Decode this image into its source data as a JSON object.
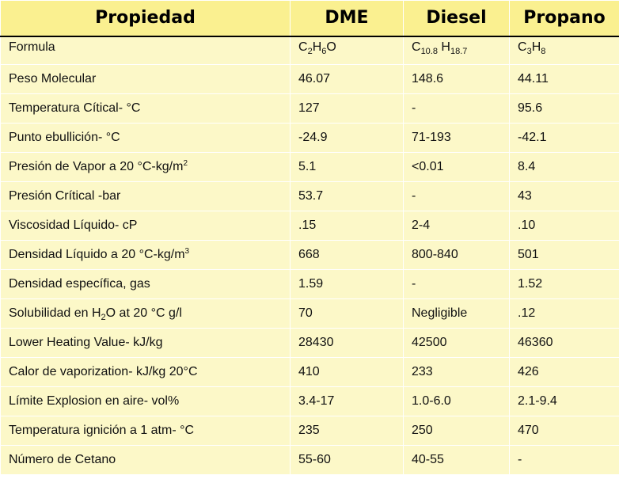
{
  "header": {
    "property": "Propiedad",
    "dme": "DME",
    "diesel": "Diesel",
    "propane": "Propano"
  },
  "formula": {
    "label": "Formula",
    "dme": {
      "c": "C",
      "c_n": "2",
      "h": "H",
      "h_n": "6",
      "o": "O"
    },
    "diesel": {
      "c": "C",
      "c_n": "10.8",
      "h": " H",
      "h_n": "18.7"
    },
    "propane": {
      "c": "C",
      "c_n": "3",
      "h": "H",
      "h_n": "8"
    }
  },
  "rows": [
    {
      "label": "Peso Molecular",
      "dme": "46.07",
      "diesel": "148.6",
      "propane": "44.11"
    },
    {
      "label": "Temperatura Cítical- °C",
      "dme": "127",
      "diesel": "-",
      "propane": "95.6"
    },
    {
      "label": "Punto ebullición- °C",
      "dme": "-24.9",
      "diesel": "71-193",
      "propane": "-42.1"
    },
    {
      "label_pre": "Presión de Vapor a 20 °C-kg/m",
      "label_sup": "2",
      "dme": "5.1",
      "diesel": "<0.01",
      "propane": "8.4"
    },
    {
      "label": "Presión Crítical -bar",
      "dme": "53.7",
      "diesel": "-",
      "propane": "43"
    },
    {
      "label": "Viscosidad Líquido- cP",
      "dme": ".15",
      "diesel": "2-4",
      "propane": ".10"
    },
    {
      "label_pre": "Densidad  Líquido a 20 °C-kg/m",
      "label_sup": "3",
      "dme": "668",
      "diesel": "800-840",
      "propane": "501"
    },
    {
      "label": "Densidad específica, gas",
      "dme": "1.59",
      "diesel": "-",
      "propane": "1.52"
    },
    {
      "label_pre": "Solubilidad en H",
      "label_sub": "2",
      "label_post": "O at 20 °C g/l",
      "dme": "70",
      "diesel": "Negligible",
      "propane": ".12"
    },
    {
      "label": "Lower Heating Value- kJ/kg",
      "dme": "28430",
      "diesel": "42500",
      "propane": "46360"
    },
    {
      "label": "Calor de vaporization- kJ/kg 20°C",
      "dme": "410",
      "diesel": "233",
      "propane": "426"
    },
    {
      "label": "Límite Explosion en aire- vol%",
      "dme": "3.4-17",
      "diesel": "1.0-6.0",
      "propane": "2.1-9.4"
    },
    {
      "label": "Temperatura ignición  a 1 atm- °C",
      "dme": "235",
      "diesel": "250",
      "propane": "470"
    },
    {
      "label": "Número de  Cetano",
      "dme": "55-60",
      "diesel": "40-55",
      "propane": "-"
    }
  ],
  "colors": {
    "header_bg": "#FAF090",
    "cell_bg": "#FCF8C8",
    "rule": "#000000"
  }
}
